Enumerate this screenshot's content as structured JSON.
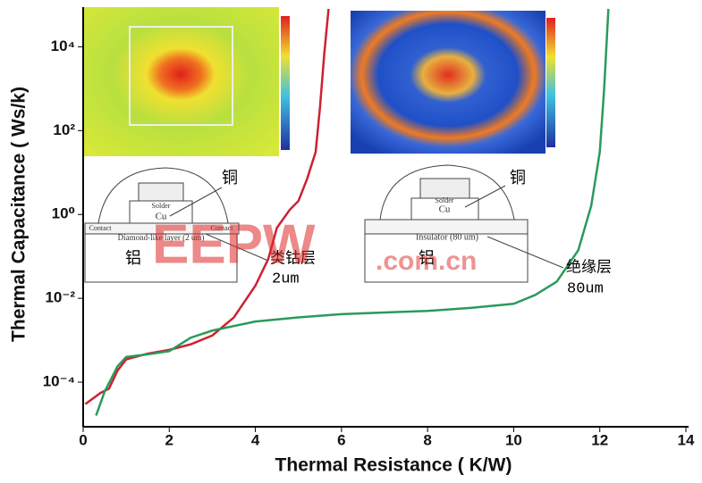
{
  "chart_data": {
    "type": "line",
    "x_label": "Thermal Resistance ( K/W)",
    "y_label": "Thermal Capacitance ( Ws/k)",
    "yscale": "log",
    "xlim": [
      0,
      14
    ],
    "xticks": [
      0,
      2,
      4,
      6,
      8,
      10,
      12,
      14
    ],
    "ylim": [
      1e-05,
      80000
    ],
    "yticks": [
      {
        "value": 0.0001,
        "label": "10⁻⁴"
      },
      {
        "value": 0.01,
        "label": "10⁻²"
      },
      {
        "value": 1,
        "label": "10⁰"
      },
      {
        "value": 100,
        "label": "10²"
      },
      {
        "value": 10000,
        "label": "10⁴"
      }
    ],
    "series": [
      {
        "color": "#cc2233",
        "x": [
          0.05,
          0.4,
          0.6,
          0.8,
          1.0,
          1.5,
          2.0,
          2.5,
          3.0,
          3.5,
          4.0,
          4.3,
          4.5,
          4.8,
          5.0,
          5.2,
          5.4,
          5.5,
          5.6,
          5.7
        ],
        "values": [
          3e-05,
          5.5e-05,
          7e-05,
          0.00019,
          0.00035,
          0.00048,
          0.00059,
          0.0008,
          0.0013,
          0.0035,
          0.02,
          0.087,
          0.48,
          1.3,
          2.1,
          7,
          31,
          350,
          6800,
          80000
        ]
      },
      {
        "color": "#2a9a5a",
        "x": [
          0.3,
          0.5,
          0.8,
          1.0,
          1.5,
          2.0,
          2.5,
          3.0,
          4.0,
          5.0,
          6.0,
          7.0,
          8.0,
          9.0,
          10.0,
          10.5,
          11.0,
          11.5,
          11.8,
          12.0,
          12.1,
          12.2
        ],
        "values": [
          1.6e-05,
          6e-05,
          0.00024,
          0.0004,
          0.00046,
          0.00055,
          0.00115,
          0.0017,
          0.0028,
          0.0035,
          0.0042,
          0.0046,
          0.005,
          0.0059,
          0.0074,
          0.012,
          0.025,
          0.14,
          1.6,
          31,
          950,
          80000
        ]
      }
    ],
    "annotations": [
      "铜",
      "铝",
      "类钴层",
      "2um",
      "铜",
      "铝",
      "绝缘层",
      "80um",
      "Cu",
      "Solder",
      "Contact",
      "Contact",
      "Diamond-like layer (2 um)",
      "Cu",
      "Solder",
      "Insulator (80 um)",
      "EEPW",
      ".com.cn"
    ]
  }
}
